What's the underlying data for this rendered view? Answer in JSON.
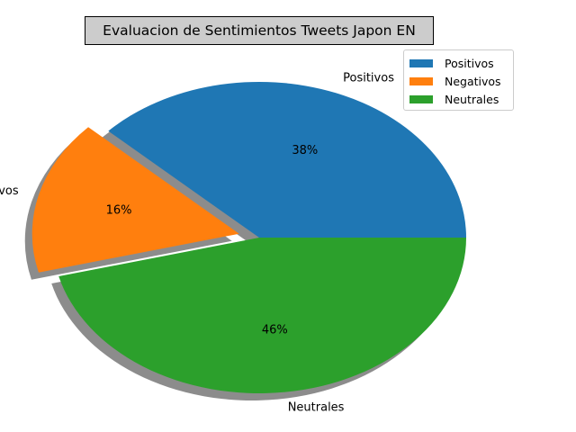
{
  "chart_data": {
    "type": "pie",
    "title": "Evaluacion de Sentimientos Tweets Japon EN",
    "categories": [
      "Positivos",
      "Negativos",
      "Neutrales"
    ],
    "values": [
      38,
      16,
      46
    ],
    "pct_labels": [
      "38%",
      "16%",
      "46%"
    ],
    "colors": [
      "#1f77b4",
      "#ff7f0e",
      "#2ca02c"
    ],
    "explode": [
      0,
      0.1,
      0
    ],
    "start_angle": 0,
    "shadow": true,
    "legend": {
      "location": "upper-right",
      "entries": [
        "Positivos",
        "Negativos",
        "Neutrales"
      ]
    }
  }
}
